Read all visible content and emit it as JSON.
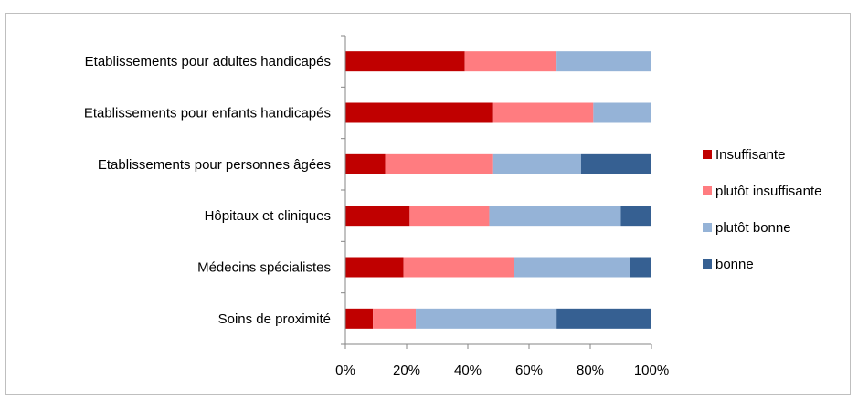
{
  "chart_data": {
    "type": "bar",
    "orientation": "horizontal",
    "stacked": "percent",
    "categories": [
      "Etablissements pour adultes handicapés",
      "Etablissements pour enfants handicapés",
      "Etablissements pour personnes âgées",
      "Hôpitaux et cliniques",
      "Médecins spécialistes",
      "Soins de proximité"
    ],
    "series": [
      {
        "name": "Insuffisante",
        "color": "#c00000",
        "values": [
          39,
          48,
          13,
          21,
          19,
          9
        ]
      },
      {
        "name": "plutôt insuffisante",
        "color": "#ff7c80",
        "values": [
          30,
          33,
          35,
          26,
          36,
          14
        ]
      },
      {
        "name": "plutôt bonne",
        "color": "#95b3d7",
        "values": [
          31,
          19,
          29,
          43,
          38,
          46
        ]
      },
      {
        "name": "bonne",
        "color": "#366092",
        "values": [
          0,
          0,
          23,
          10,
          7,
          31
        ]
      }
    ],
    "xticks": [
      "0%",
      "20%",
      "40%",
      "60%",
      "80%",
      "100%"
    ],
    "xlim": [
      0,
      100
    ],
    "legend_position": "right",
    "grid": false
  }
}
